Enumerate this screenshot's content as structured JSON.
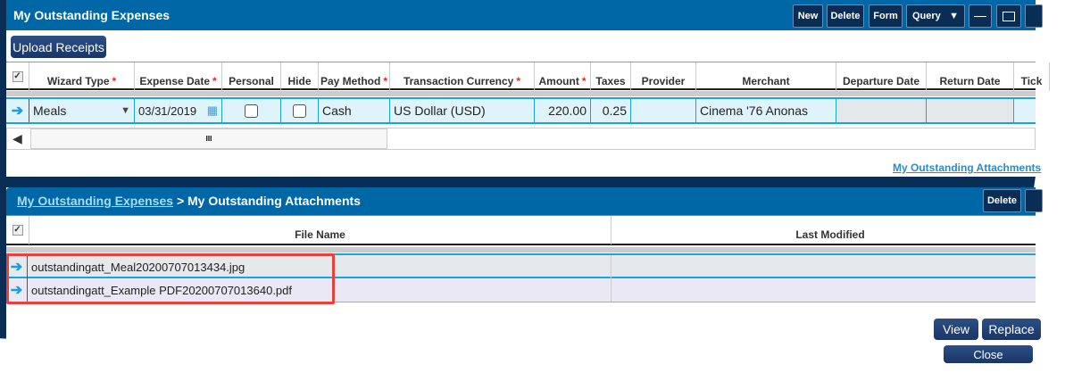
{
  "expenses": {
    "title": "My Outstanding Expenses",
    "toolbar": {
      "new": "New",
      "delete": "Delete",
      "form": "Form",
      "query": "Query"
    },
    "upload_label": "Upload Receipts",
    "columns": [
      {
        "label": "Wizard Type",
        "required": true
      },
      {
        "label": "Expense Date",
        "required": true
      },
      {
        "label": "Personal",
        "required": false
      },
      {
        "label": "Hide",
        "required": false
      },
      {
        "label": "Pay Method",
        "required": true
      },
      {
        "label": "Transaction Currency",
        "required": true
      },
      {
        "label": "Amount",
        "required": true
      },
      {
        "label": "Taxes",
        "required": false
      },
      {
        "label": "Provider",
        "required": false
      },
      {
        "label": "Merchant",
        "required": false
      },
      {
        "label": "Departure Date",
        "required": false
      },
      {
        "label": "Return Date",
        "required": false
      },
      {
        "label": "Tick",
        "required": false
      }
    ],
    "row": {
      "wizard_type": "Meals",
      "expense_date": "03/31/2019",
      "personal": false,
      "hide": false,
      "pay_method": "Cash",
      "currency": "US Dollar (USD)",
      "amount": "220.00",
      "taxes": "0.25",
      "provider": "",
      "merchant": "Cinema '76 Anonas",
      "departure_date": "",
      "return_date": ""
    },
    "scroll_grip": "III",
    "attachments_link": "My Outstanding Attachments"
  },
  "attachments": {
    "breadcrumb_link": "My Outstanding Expenses",
    "separator": ">",
    "title": "My Outstanding Attachments",
    "delete": "Delete",
    "columns": [
      "File Name",
      "Last Modified"
    ],
    "rows": [
      {
        "file_name": "outstandingatt_Meal20200707013434.jpg",
        "last_modified": ""
      },
      {
        "file_name": "outstandingatt_Example PDF20200707013640.pdf",
        "last_modified": ""
      }
    ],
    "buttons": {
      "view": "View",
      "replace": "Replace",
      "close": "Close"
    }
  },
  "colors": {
    "header": "#0067a7",
    "dark": "#0a2d55",
    "highlight": "#e8413c",
    "row_selected": "#dff3fa"
  }
}
